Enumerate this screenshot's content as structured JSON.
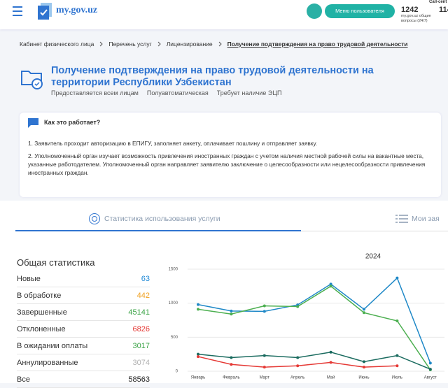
{
  "header": {
    "logo": "my.gov.uz",
    "menu_button": "Меню пользователя",
    "stat_value": 1242,
    "stat_label": "my.gov.uz общие вопросы (24/7)",
    "call_center": "Call-cent",
    "cut_value": "114"
  },
  "breadcrumbs": [
    "Кабинет физического лица",
    "Перечень услуг",
    "Лицензирование",
    "Получение подтверждения на право трудовой деятельности"
  ],
  "service": {
    "title": "Получение подтверждения на право трудовой деятельности на территории Республики Узбекистан",
    "tags": [
      "Предоставляется всем лицам",
      "Полуавтоматическая",
      "Требует наличие ЭЦП"
    ]
  },
  "how_it_works": {
    "title": "Как это работает?",
    "steps": [
      "1. Заявитель проходит авторизацию в ЕПИГУ, заполняет анкету, оплачивает пошлину и отправляет заявку.",
      "2. Уполномоченный орган изучает возможность привлечения иностранных граждан с учетом наличия местной рабочей силы на вакантные места, указанные работодателем. Уполномоченный орган направляет заявителю заключение о целесообразности или нецелесообразности привлечения иностранных граждан."
    ]
  },
  "tabs": [
    "Статистика использования услуги",
    "Мои зая"
  ],
  "stats": {
    "title": "Общая статистика",
    "rows": [
      {
        "label": "Новые",
        "value": 63,
        "color": "#1e88d6"
      },
      {
        "label": "В обработке",
        "value": 442,
        "color": "#f0a020"
      },
      {
        "label": "Завершенные",
        "value": 45141,
        "color": "#3aa345"
      },
      {
        "label": "Отклоненные",
        "value": 6826,
        "color": "#e53935"
      },
      {
        "label": "В ожидании оплаты",
        "value": 3017,
        "color": "#3aa345"
      },
      {
        "label": "Аннулированные",
        "value": 3074,
        "color": "#b0b0b0"
      },
      {
        "label": "Все",
        "value": 58563,
        "color": "#222222"
      }
    ]
  },
  "chart_data": {
    "type": "line",
    "title": "2024",
    "categories": [
      "Январь",
      "Февраль",
      "Март",
      "Апрель",
      "Май",
      "Июнь",
      "Июль",
      "Август"
    ],
    "series": [
      {
        "color": "#1e88c7",
        "values": [
          980,
          885,
          880,
          975,
          1280,
          910,
          1370,
          120
        ]
      },
      {
        "color": "#4caf50",
        "values": [
          910,
          840,
          960,
          950,
          1250,
          860,
          740,
          20
        ]
      },
      {
        "color": "#1a6b5f",
        "values": [
          250,
          200,
          230,
          200,
          280,
          140,
          230,
          30
        ]
      },
      {
        "color": "#e53935",
        "values": [
          215,
          100,
          60,
          80,
          130,
          60,
          80,
          null
        ]
      }
    ],
    "ylim": [
      0,
      1500
    ],
    "yticks": [
      0,
      500,
      1000,
      1500
    ],
    "grid": true
  }
}
